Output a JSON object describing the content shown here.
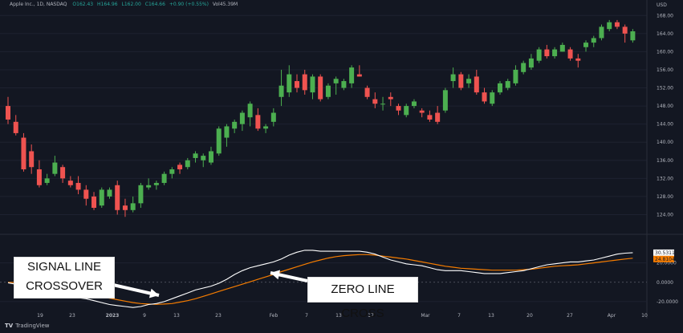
{
  "header": {
    "title": "Apple Inc., 1D, NASDAQ",
    "open": "O162.43",
    "high": "H164.96",
    "low": "L162.00",
    "close": "C164.66",
    "change": "+0.90 (+0.55%)",
    "volume": "Vol45.39M"
  },
  "brand": {
    "logo": "TV",
    "name": "TradingView"
  },
  "callouts": {
    "signal_line_1": "SIGNAL LINE",
    "signal_line_2": "CROSSOVER",
    "zero_line": "ZERO LINE CROSS"
  },
  "colors": {
    "background": "#131722",
    "bull": "#26a69a",
    "bull_body": "#4caf50",
    "bear_body": "#ef5350",
    "macd_line": "#ffffff",
    "signal_line": "#f57c00",
    "grid": "#1e2230",
    "axis_text": "#b2b5be"
  },
  "chart_data": {
    "type": "candlestick",
    "currency": "USD",
    "price_ticks": [
      124,
      128,
      132,
      136,
      140,
      144,
      148,
      152,
      156,
      160,
      164,
      168
    ],
    "ylim": [
      120,
      170
    ],
    "x_ticks": [
      "19",
      "23",
      "2023",
      "9",
      "13",
      "23",
      "Feb",
      "7",
      "13",
      "17",
      "Mar",
      "7",
      "13",
      "20",
      "27",
      "Apr",
      "10"
    ],
    "candles": [
      [
        148.0,
        150.0,
        144.0,
        145.0
      ],
      [
        144.5,
        146.0,
        141.5,
        142.0
      ],
      [
        141.0,
        142.0,
        133.5,
        134.0
      ],
      [
        138.0,
        139.5,
        133.0,
        134.5
      ],
      [
        134.0,
        136.0,
        130.0,
        130.5
      ],
      [
        131.0,
        133.0,
        130.5,
        132.0
      ],
      [
        133.0,
        137.0,
        132.5,
        135.5
      ],
      [
        134.5,
        135.0,
        131.0,
        132.0
      ],
      [
        131.5,
        132.5,
        130.0,
        130.5
      ],
      [
        131.0,
        132.5,
        128.5,
        129.5
      ],
      [
        129.5,
        130.5,
        126.0,
        127.5
      ],
      [
        128.0,
        129.0,
        125.0,
        125.5
      ],
      [
        126.0,
        130.0,
        125.5,
        129.5
      ],
      [
        128.0,
        130.0,
        127.5,
        129.5
      ],
      [
        130.5,
        131.5,
        124.0,
        125.0
      ],
      [
        126.0,
        127.5,
        123.5,
        125.0
      ],
      [
        125.0,
        128.0,
        124.5,
        126.5
      ],
      [
        126.5,
        131.0,
        125.5,
        130.5
      ],
      [
        130.0,
        132.0,
        129.5,
        130.5
      ],
      [
        130.5,
        131.5,
        129.5,
        131.0
      ],
      [
        131.0,
        133.5,
        130.5,
        133.0
      ],
      [
        133.0,
        134.5,
        132.0,
        134.0
      ],
      [
        135.0,
        135.5,
        133.0,
        134.0
      ],
      [
        134.5,
        136.5,
        134.0,
        136.0
      ],
      [
        136.5,
        138.0,
        135.5,
        137.5
      ],
      [
        136.0,
        137.5,
        134.5,
        137.0
      ],
      [
        135.5,
        139.0,
        135.0,
        138.0
      ],
      [
        137.5,
        143.5,
        137.0,
        143.0
      ],
      [
        141.0,
        144.0,
        139.0,
        143.5
      ],
      [
        143.0,
        145.0,
        142.0,
        144.5
      ],
      [
        144.0,
        147.0,
        142.5,
        146.5
      ],
      [
        145.5,
        149.0,
        143.5,
        148.5
      ],
      [
        146.0,
        147.5,
        142.5,
        143.0
      ],
      [
        143.0,
        144.0,
        142.0,
        143.5
      ],
      [
        144.5,
        147.5,
        143.5,
        146.5
      ],
      [
        150.0,
        156.0,
        148.0,
        152.5
      ],
      [
        151.0,
        157.0,
        150.0,
        155.0
      ],
      [
        153.5,
        155.0,
        151.0,
        152.0
      ],
      [
        155.0,
        156.0,
        150.5,
        151.5
      ],
      [
        151.0,
        155.0,
        149.5,
        154.5
      ],
      [
        154.5,
        155.0,
        149.0,
        149.5
      ],
      [
        150.0,
        153.0,
        149.5,
        152.5
      ],
      [
        153.0,
        154.5,
        150.5,
        154.0
      ],
      [
        152.0,
        154.0,
        151.5,
        153.5
      ],
      [
        153.0,
        157.0,
        152.0,
        156.5
      ],
      [
        155.0,
        157.0,
        154.5,
        154.5
      ],
      [
        152.0,
        152.5,
        149.5,
        150.0
      ],
      [
        149.5,
        151.0,
        147.5,
        148.5
      ],
      [
        148.5,
        150.0,
        147.0,
        148.5
      ],
      [
        150.0,
        151.0,
        148.0,
        149.5
      ],
      [
        148.0,
        148.5,
        146.0,
        147.0
      ],
      [
        146.0,
        148.5,
        145.5,
        148.0
      ],
      [
        148.0,
        149.5,
        147.5,
        149.0
      ],
      [
        147.0,
        147.5,
        145.5,
        146.5
      ],
      [
        146.0,
        147.0,
        144.5,
        145.0
      ],
      [
        146.5,
        148.0,
        144.0,
        144.5
      ],
      [
        147.0,
        152.0,
        146.5,
        151.5
      ],
      [
        153.5,
        156.5,
        152.0,
        155.0
      ],
      [
        155.0,
        155.5,
        151.5,
        152.0
      ],
      [
        153.0,
        155.0,
        152.0,
        154.0
      ],
      [
        154.5,
        156.0,
        150.5,
        151.0
      ],
      [
        151.0,
        152.0,
        148.5,
        149.0
      ],
      [
        148.5,
        151.5,
        148.0,
        151.0
      ],
      [
        151.0,
        153.5,
        150.5,
        153.0
      ],
      [
        152.0,
        154.0,
        151.5,
        153.5
      ],
      [
        153.0,
        157.0,
        152.5,
        156.0
      ],
      [
        155.5,
        158.0,
        155.0,
        157.5
      ],
      [
        156.5,
        159.5,
        156.0,
        158.5
      ],
      [
        158.0,
        161.0,
        157.5,
        160.5
      ],
      [
        160.5,
        161.5,
        158.5,
        159.0
      ],
      [
        159.0,
        161.0,
        158.5,
        160.5
      ],
      [
        160.0,
        162.0,
        160.0,
        161.5
      ],
      [
        160.5,
        161.0,
        158.0,
        158.5
      ],
      [
        158.5,
        159.5,
        156.5,
        158.0
      ],
      [
        161.0,
        162.5,
        160.0,
        162.0
      ],
      [
        162.0,
        163.5,
        161.0,
        163.0
      ],
      [
        163.0,
        166.0,
        162.5,
        165.5
      ],
      [
        165.0,
        167.0,
        164.5,
        166.5
      ],
      [
        166.5,
        167.0,
        165.0,
        165.5
      ],
      [
        165.5,
        166.0,
        162.0,
        164.0
      ],
      [
        162.5,
        165.0,
        162.0,
        164.5
      ]
    ],
    "macd": {
      "ticks": [
        "20.0000",
        "0.0000",
        "-20.0000"
      ],
      "tick_values": [
        20,
        0,
        -20
      ],
      "ylim": [
        -30,
        47
      ],
      "macd_label": "30.5311",
      "signal_label": "24.8104",
      "macd_values": [
        -0.5,
        -2,
        -4,
        -7,
        -10,
        -12,
        -13,
        -14,
        -15,
        -16,
        -17,
        -19,
        -21,
        -23,
        -24,
        -25,
        -26,
        -25,
        -23,
        -22,
        -20,
        -17,
        -14,
        -11,
        -8,
        -6,
        -4,
        -1,
        3,
        8,
        12,
        15,
        17,
        19,
        21,
        24,
        28,
        31,
        33,
        33,
        32,
        32,
        32,
        32,
        32,
        32,
        31,
        29,
        26,
        23,
        21,
        19,
        18,
        17,
        15,
        13,
        12,
        12,
        12,
        11,
        10,
        9,
        9,
        9,
        10,
        11,
        12,
        14,
        16,
        18,
        19,
        20,
        21,
        21,
        22,
        23,
        25,
        27,
        29,
        30,
        30.5
      ],
      "signal_values": [
        0,
        -0.3,
        -1,
        -2,
        -3,
        -4.5,
        -6,
        -7.5,
        -9,
        -10.5,
        -12,
        -13.5,
        -15,
        -16.5,
        -18,
        -19.5,
        -21,
        -22,
        -22.5,
        -22.8,
        -22.5,
        -22,
        -20.5,
        -19,
        -17,
        -14.5,
        -12,
        -9.5,
        -7,
        -4.5,
        -2,
        0.5,
        3,
        5.5,
        8,
        11,
        13.5,
        16,
        18.5,
        21,
        23,
        25,
        26.5,
        27.5,
        28,
        28.5,
        28.5,
        28,
        27,
        26,
        25,
        24,
        22.5,
        21,
        19.5,
        18,
        16.5,
        15.5,
        14.5,
        14,
        13.5,
        13,
        12.5,
        12.5,
        12.5,
        12.5,
        13,
        13.5,
        14.5,
        15.5,
        16.5,
        17,
        17.5,
        18,
        19,
        20,
        21,
        22,
        23,
        24,
        24.8
      ]
    }
  }
}
